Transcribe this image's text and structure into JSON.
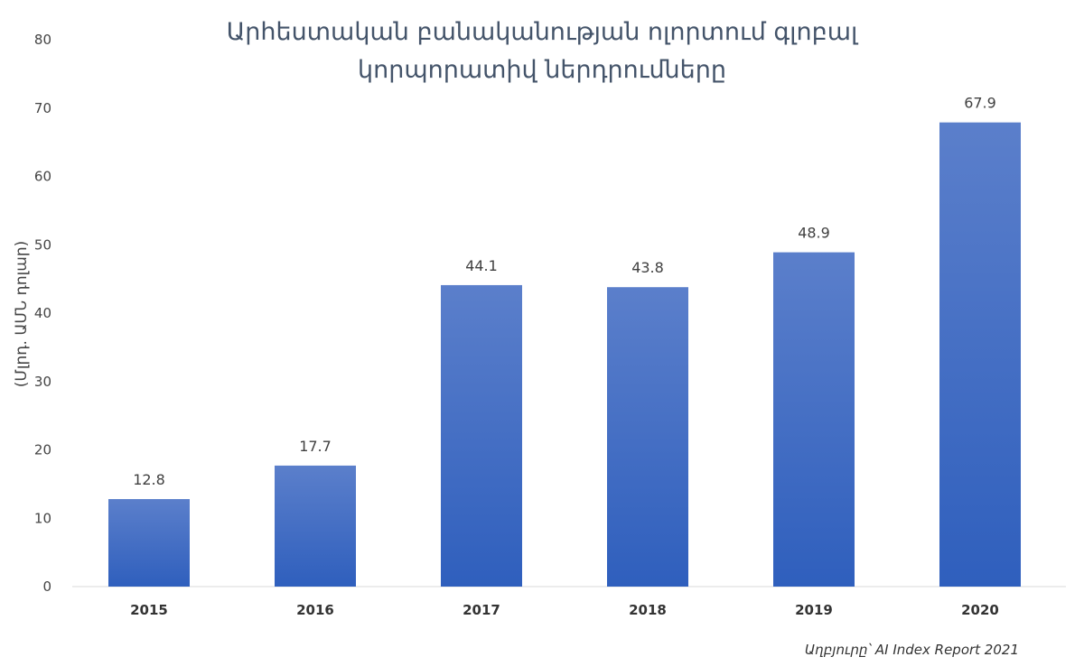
{
  "chart_data": {
    "type": "bar",
    "title_lines": [
      "Արհեստական բանականության ոլորտում գլոբալ",
      "կորպորատիվ ներդրումները"
    ],
    "ylabel": "(Մլրդ. ԱՄՆ դոլար)",
    "xlabel": "",
    "categories": [
      "2015",
      "2016",
      "2017",
      "2018",
      "2019",
      "2020"
    ],
    "values": [
      12.8,
      17.7,
      44.1,
      43.8,
      48.9,
      67.9
    ],
    "data_labels": [
      "12.8",
      "17.7",
      "44.1",
      "43.8",
      "48.9",
      "67.9"
    ],
    "ylim": [
      0,
      80
    ],
    "yticks": [
      0,
      10,
      20,
      30,
      40,
      50,
      60,
      70,
      80
    ],
    "grid": false,
    "legend": "none",
    "bar_color_top": "#5b7fcb",
    "bar_color_bottom": "#2f5fbd",
    "source": "Աղբյուրը՝ AI Index Report 2021"
  }
}
